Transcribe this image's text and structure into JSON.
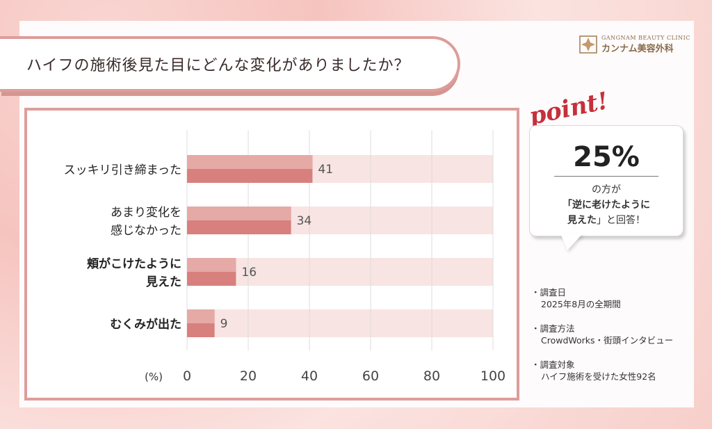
{
  "title": "ハイフの施術後見た目にどんな変化がありましたか？",
  "logo": {
    "top": "GANGNAM BEAUTY CLINIC",
    "bottom": "カンナム美容外科"
  },
  "point": {
    "label": "point!",
    "percent": "25%",
    "line1": "の方が",
    "line2": "「逆に老けたように",
    "line3_bold": "見えた",
    "line3_rest": "」と回答！"
  },
  "notes": [
    {
      "head": "調査日",
      "val": "2025年8月の全期間"
    },
    {
      "head": "調査方法",
      "val": "CrowdWorks・街頭インタビュー"
    },
    {
      "head": "調査対象",
      "val": "ハイフ施術を受けた女性92名"
    }
  ],
  "chart_data": {
    "type": "bar",
    "orientation": "horizontal",
    "categories": [
      [
        "スッキリ引き締まった"
      ],
      [
        "あまり変化を",
        "感じなかった"
      ],
      [
        "頬がこけたように",
        "見えた"
      ],
      [
        "むくみが出た"
      ]
    ],
    "bold_categories": [
      false,
      false,
      true,
      true
    ],
    "values": [
      41,
      34,
      16,
      9
    ],
    "xlim": [
      0,
      100
    ],
    "xticks": [
      0,
      20,
      40,
      60,
      80,
      100
    ],
    "xlabel": "(%)",
    "grid": true,
    "colors": {
      "bar": "#d8807d",
      "bar_light": "#e8b0ad",
      "track": "#f8e4e2",
      "grid": "#dddddd"
    }
  }
}
